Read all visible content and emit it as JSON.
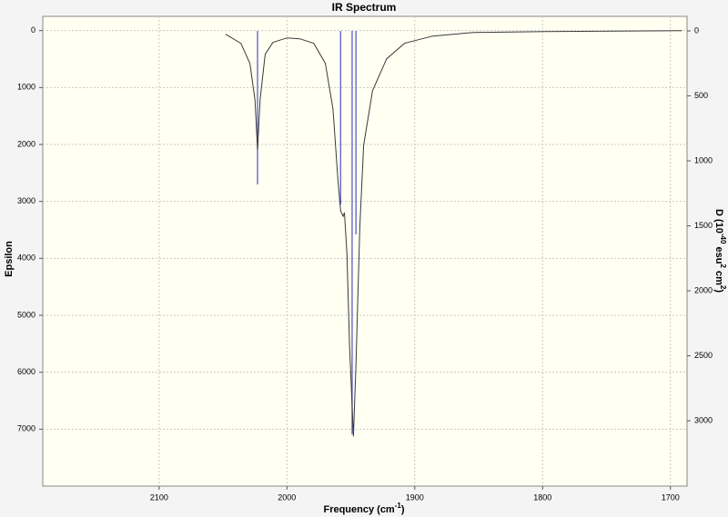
{
  "chart_data": {
    "type": "ir-spectrum",
    "title": "IR Spectrum",
    "x_label_parts": [
      "Frequency (cm",
      "-1",
      ")"
    ],
    "y_label": "Epsilon",
    "y2_label_parts": [
      "D (10",
      "-40",
      " esu",
      "2",
      " cm",
      "2",
      ")"
    ],
    "xlim": [
      2191,
      1687
    ],
    "xticks": [
      2100,
      2000,
      1900,
      1800,
      1700
    ],
    "ylim": [
      -250,
      8000
    ],
    "yticks": [
      0,
      1000,
      2000,
      3000,
      4000,
      5000,
      6000,
      7000
    ],
    "y2lim": [
      -112,
      3503
    ],
    "y2ticks": [
      0,
      500,
      1000,
      1500,
      2000,
      2500,
      3000
    ],
    "grid": true,
    "spectrum": {
      "color": "#3a3a3a",
      "x": [
        2048,
        2036,
        2029,
        2025,
        2023,
        2021,
        2017,
        2011,
        2000,
        1990,
        1979,
        1970,
        1964,
        1960,
        1958,
        1956,
        1955,
        1953,
        1951,
        1948,
        1946,
        1943,
        1940,
        1933,
        1922,
        1908,
        1886,
        1854,
        1798,
        1691
      ],
      "values": [
        64,
        224,
        575,
        1215,
        2094,
        1215,
        416,
        208,
        128,
        144,
        224,
        575,
        1374,
        2653,
        3165,
        3260,
        3197,
        3932,
        5530,
        7128,
        5850,
        3452,
        2014,
        1055,
        495,
        224,
        96,
        32,
        16,
        0
      ]
    },
    "sticks": {
      "color": "#5a5ec8",
      "axis": "y2",
      "x": [
        2023,
        1958,
        1949,
        1946
      ],
      "values": [
        1182,
        1336,
        3105,
        1566
      ]
    }
  }
}
